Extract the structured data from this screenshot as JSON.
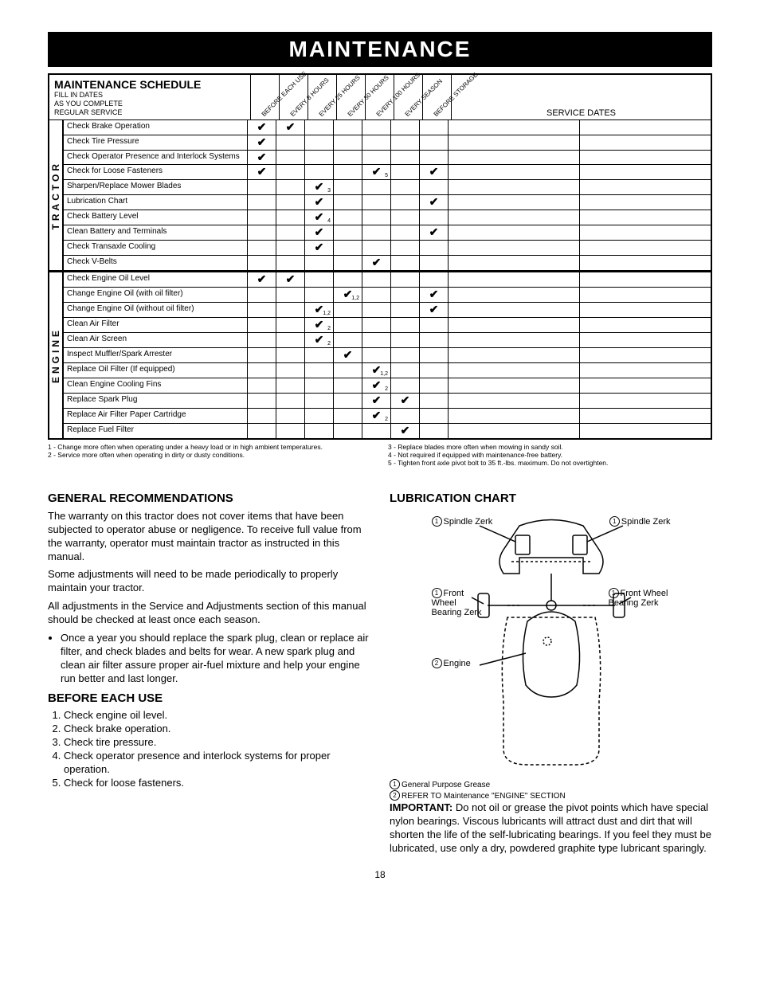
{
  "title": "MAINTENANCE",
  "schedule": {
    "heading": "MAINTENANCE SCHEDULE",
    "subheading": "FILL IN DATES\nAS YOU COMPLETE\nREGULAR SERVICE",
    "col_headers": [
      "BEFORE EACH USE",
      "EVERY 8 HOURS",
      "EVERY 25 HOURS",
      "EVERY 50 HOURS",
      "EVERY 100 HOURS",
      "EVERY SEASON",
      "BEFORE STORAGE"
    ],
    "service_dates": "SERVICE DATES",
    "sections": [
      {
        "label": "TRACTOR",
        "rows": [
          {
            "task": "Check Brake Operation",
            "checks": [
              "✔",
              "✔",
              "",
              "",
              "",
              "",
              ""
            ]
          },
          {
            "task": "Check Tire Pressure",
            "checks": [
              "✔",
              "",
              "",
              "",
              "",
              "",
              ""
            ]
          },
          {
            "task": "Check Operator Presence and Interlock Systems",
            "checks": [
              "✔",
              "",
              "",
              "",
              "",
              "",
              ""
            ],
            "tall": true
          },
          {
            "task": "Check for Loose Fasteners",
            "checks": [
              "✔",
              "",
              "",
              "",
              "✔",
              "",
              "✔"
            ],
            "subs": [
              "",
              "",
              "",
              "",
              "5",
              "",
              ""
            ]
          },
          {
            "task": "Sharpen/Replace Mower Blades",
            "checks": [
              "",
              "",
              "✔",
              "",
              "",
              "",
              ""
            ],
            "subs": [
              "",
              "",
              "3",
              "",
              "",
              "",
              ""
            ]
          },
          {
            "task": "Lubrication Chart",
            "checks": [
              "",
              "",
              "✔",
              "",
              "",
              "",
              "✔"
            ]
          },
          {
            "task": "Check Battery Level",
            "checks": [
              "",
              "",
              "✔",
              "",
              "",
              "",
              ""
            ],
            "subs": [
              "",
              "",
              "4",
              "",
              "",
              "",
              ""
            ]
          },
          {
            "task": "Clean Battery and Terminals",
            "checks": [
              "",
              "",
              "✔",
              "",
              "",
              "",
              "✔"
            ]
          },
          {
            "task": "Check Transaxle Cooling",
            "checks": [
              "",
              "",
              "✔",
              "",
              "",
              "",
              ""
            ]
          },
          {
            "task": "Check V-Belts",
            "checks": [
              "",
              "",
              "",
              "",
              "✔",
              "",
              ""
            ]
          }
        ]
      },
      {
        "label": "ENGINE",
        "rows": [
          {
            "task": "Check Engine Oil Level",
            "checks": [
              "✔",
              "✔",
              "",
              "",
              "",
              "",
              ""
            ]
          },
          {
            "task": "Change Engine Oil (with oil filter)",
            "checks": [
              "",
              "",
              "",
              "✔",
              "",
              "",
              "✔"
            ],
            "subs": [
              "",
              "",
              "",
              "1,2",
              "",
              "",
              ""
            ]
          },
          {
            "task": "Change Engine Oil (without oil filter)",
            "checks": [
              "",
              "",
              "✔",
              "",
              "",
              "",
              "✔"
            ],
            "subs": [
              "",
              "",
              "1,2",
              "",
              "",
              "",
              ""
            ]
          },
          {
            "task": "Clean Air Filter",
            "checks": [
              "",
              "",
              "✔",
              "",
              "",
              "",
              ""
            ],
            "subs": [
              "",
              "",
              "2",
              "",
              "",
              "",
              ""
            ]
          },
          {
            "task": "Clean Air Screen",
            "checks": [
              "",
              "",
              "✔",
              "",
              "",
              "",
              ""
            ],
            "subs": [
              "",
              "",
              "2",
              "",
              "",
              "",
              ""
            ]
          },
          {
            "task": "Inspect Muffler/Spark Arrester",
            "checks": [
              "",
              "",
              "",
              "✔",
              "",
              "",
              ""
            ]
          },
          {
            "task": "Replace Oil Filter (If equipped)",
            "checks": [
              "",
              "",
              "",
              "",
              "✔",
              "",
              ""
            ],
            "subs": [
              "",
              "",
              "",
              "",
              "1,2",
              "",
              ""
            ]
          },
          {
            "task": "Clean Engine Cooling Fins",
            "checks": [
              "",
              "",
              "",
              "",
              "✔",
              "",
              ""
            ],
            "subs": [
              "",
              "",
              "",
              "",
              "2",
              "",
              ""
            ]
          },
          {
            "task": "Replace Spark Plug",
            "checks": [
              "",
              "",
              "",
              "",
              "✔",
              "✔",
              ""
            ]
          },
          {
            "task": "Replace Air Filter Paper Cartridge",
            "checks": [
              "",
              "",
              "",
              "",
              "✔",
              "",
              ""
            ],
            "subs": [
              "",
              "",
              "",
              "",
              "2",
              "",
              ""
            ]
          },
          {
            "task": "Replace Fuel Filter",
            "checks": [
              "",
              "",
              "",
              "",
              "",
              "✔",
              ""
            ]
          }
        ]
      }
    ]
  },
  "footnotes": {
    "left": [
      "1 - Change more often when operating under a heavy load or in high ambient temperatures.",
      "2 - Service more often when operating in dirty or dusty conditions."
    ],
    "right": [
      "3 - Replace blades more often when mowing in sandy soil.",
      "4 - Not required if equipped with maintenance-free battery.",
      "5 - Tighten front axle pivot bolt to 35 ft.-lbs. maximum. Do not overtighten."
    ]
  },
  "left_col": {
    "h1": "GENERAL RECOMMENDATIONS",
    "p1": "The warranty on this tractor does not cover items that have been subjected to operator abuse or negligence. To receive full value from the warranty, operator must maintain tractor as instructed in this manual.",
    "p2": "Some adjustments will need to be made periodically to properly maintain your tractor.",
    "p3": "All adjustments in the Service and Adjustments section of this manual should be checked at least once each season.",
    "bullet": "Once a year you should replace the spark plug, clean or replace air filter, and check blades and belts for wear. A new spark plug and clean air filter assure proper air-fuel mixture and help your engine run better and last longer.",
    "h2": "BEFORE EACH USE",
    "ol": [
      "Check engine oil level.",
      "Check brake operation.",
      "Check tire pressure.",
      "Check operator presence and interlock systems for proper operation.",
      "Check for loose fasteners."
    ]
  },
  "right_col": {
    "h1": "LUBRICATION CHART",
    "labels": {
      "spindle_l": "Spindle Zerk",
      "spindle_r": "Spindle Zerk",
      "front_l": "Front Wheel Bearing Zerk",
      "front_r": "Front Wheel Bearing Zerk",
      "engine": "Engine"
    },
    "legend1": "General Purpose Grease",
    "legend2": "REFER TO Maintenance \"ENGINE\" SECTION",
    "important_label": "IMPORTANT:",
    "important": "Do not oil or grease the pivot points which have special nylon bearings. Viscous lubricants will attract dust and dirt that will shorten the life of the self-lubricating bearings. If you feel they must be lubricated, use only a dry, powdered graphite type lubricant sparingly."
  },
  "page": "18"
}
